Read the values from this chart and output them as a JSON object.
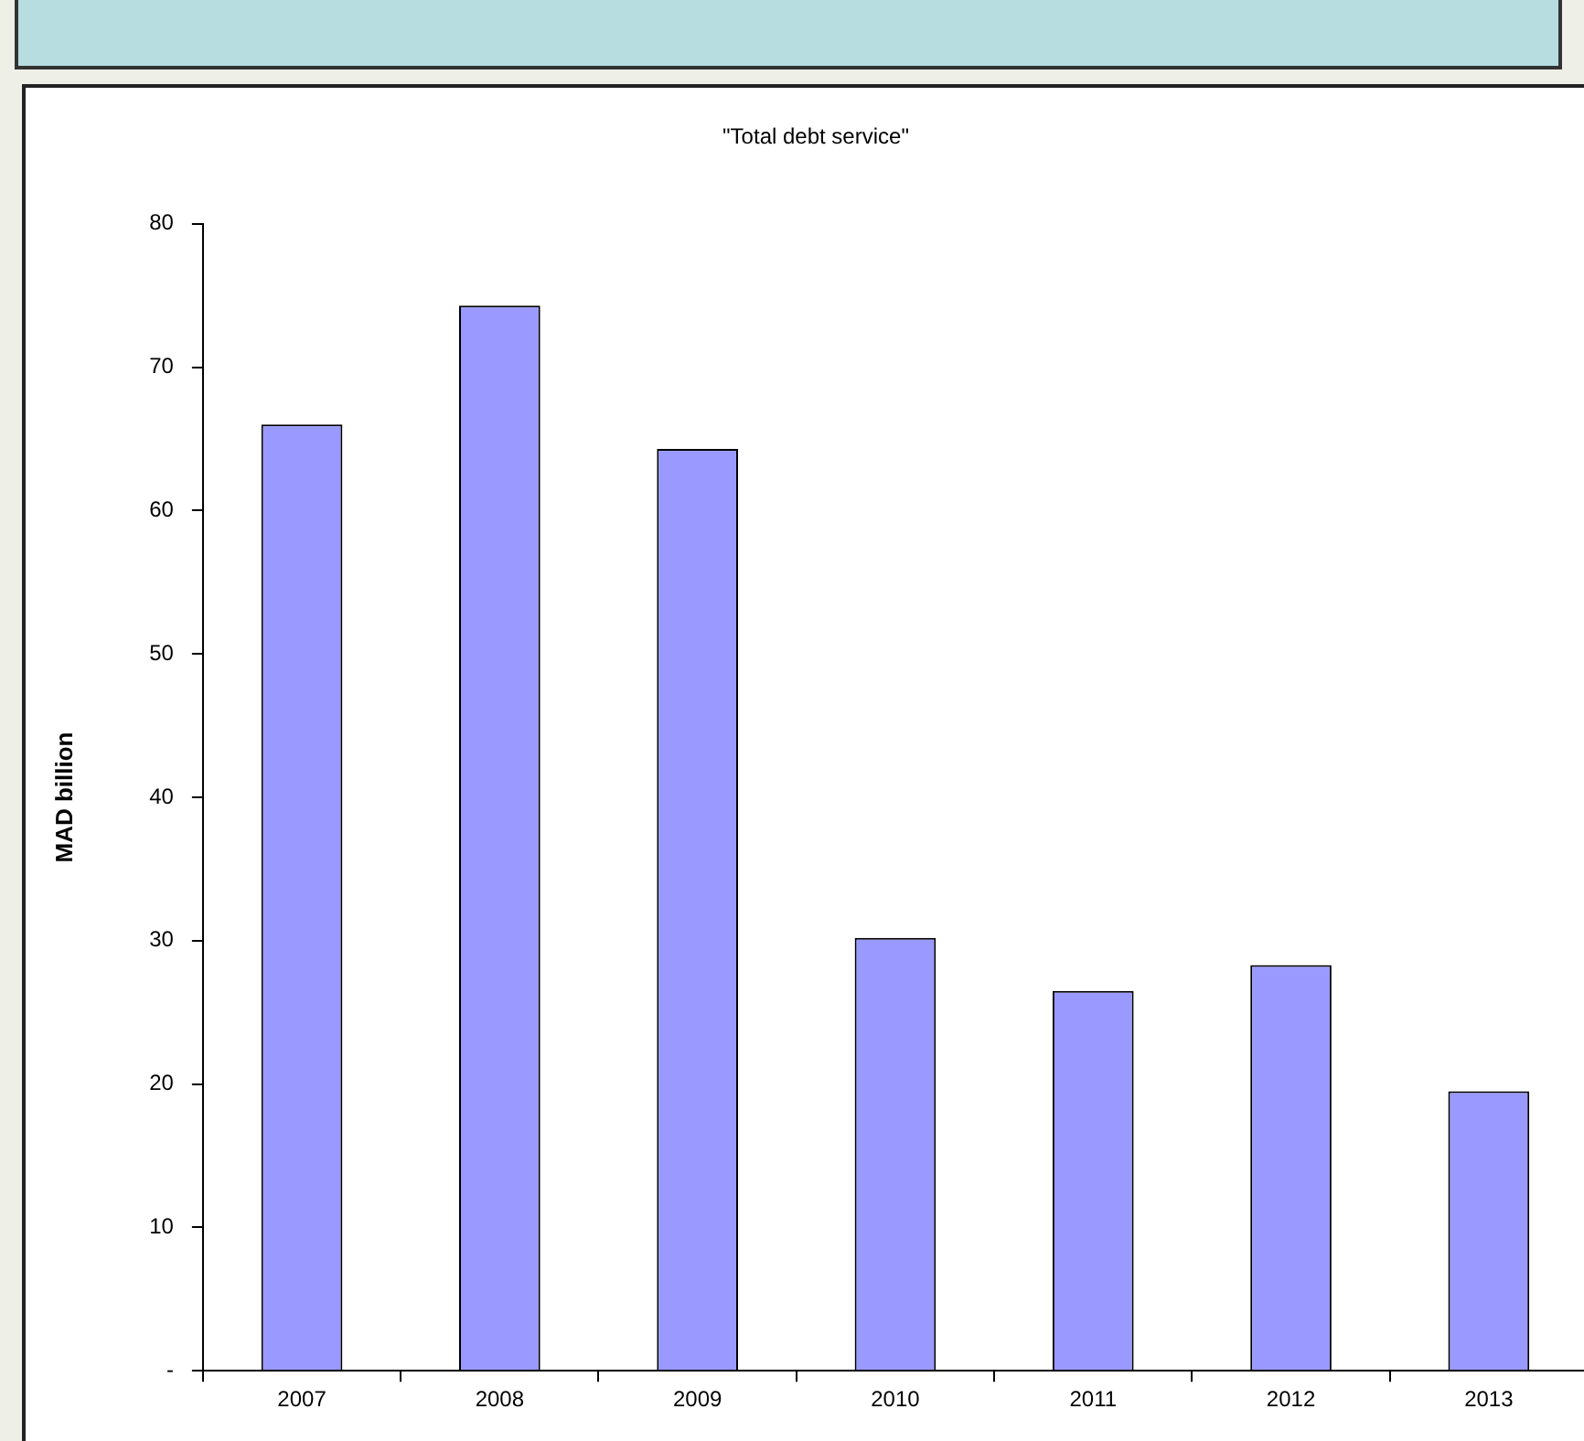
{
  "chart_data": {
    "type": "bar",
    "title": "\"Total debt service\"",
    "ylabel": "MAD billion",
    "categories": [
      "2007",
      "2008",
      "2009",
      "2010",
      "2011",
      "2012",
      "2013"
    ],
    "values": [
      66.0,
      74.3,
      64.3,
      30.2,
      26.5,
      28.3,
      19.5
    ],
    "color": "#9999ff",
    "ylim": [
      0,
      80
    ],
    "yticks": [
      {
        "value": 0,
        "label": "-"
      },
      10,
      20,
      30,
      40,
      50,
      60,
      70,
      80
    ],
    "grid": false,
    "legend": false
  }
}
